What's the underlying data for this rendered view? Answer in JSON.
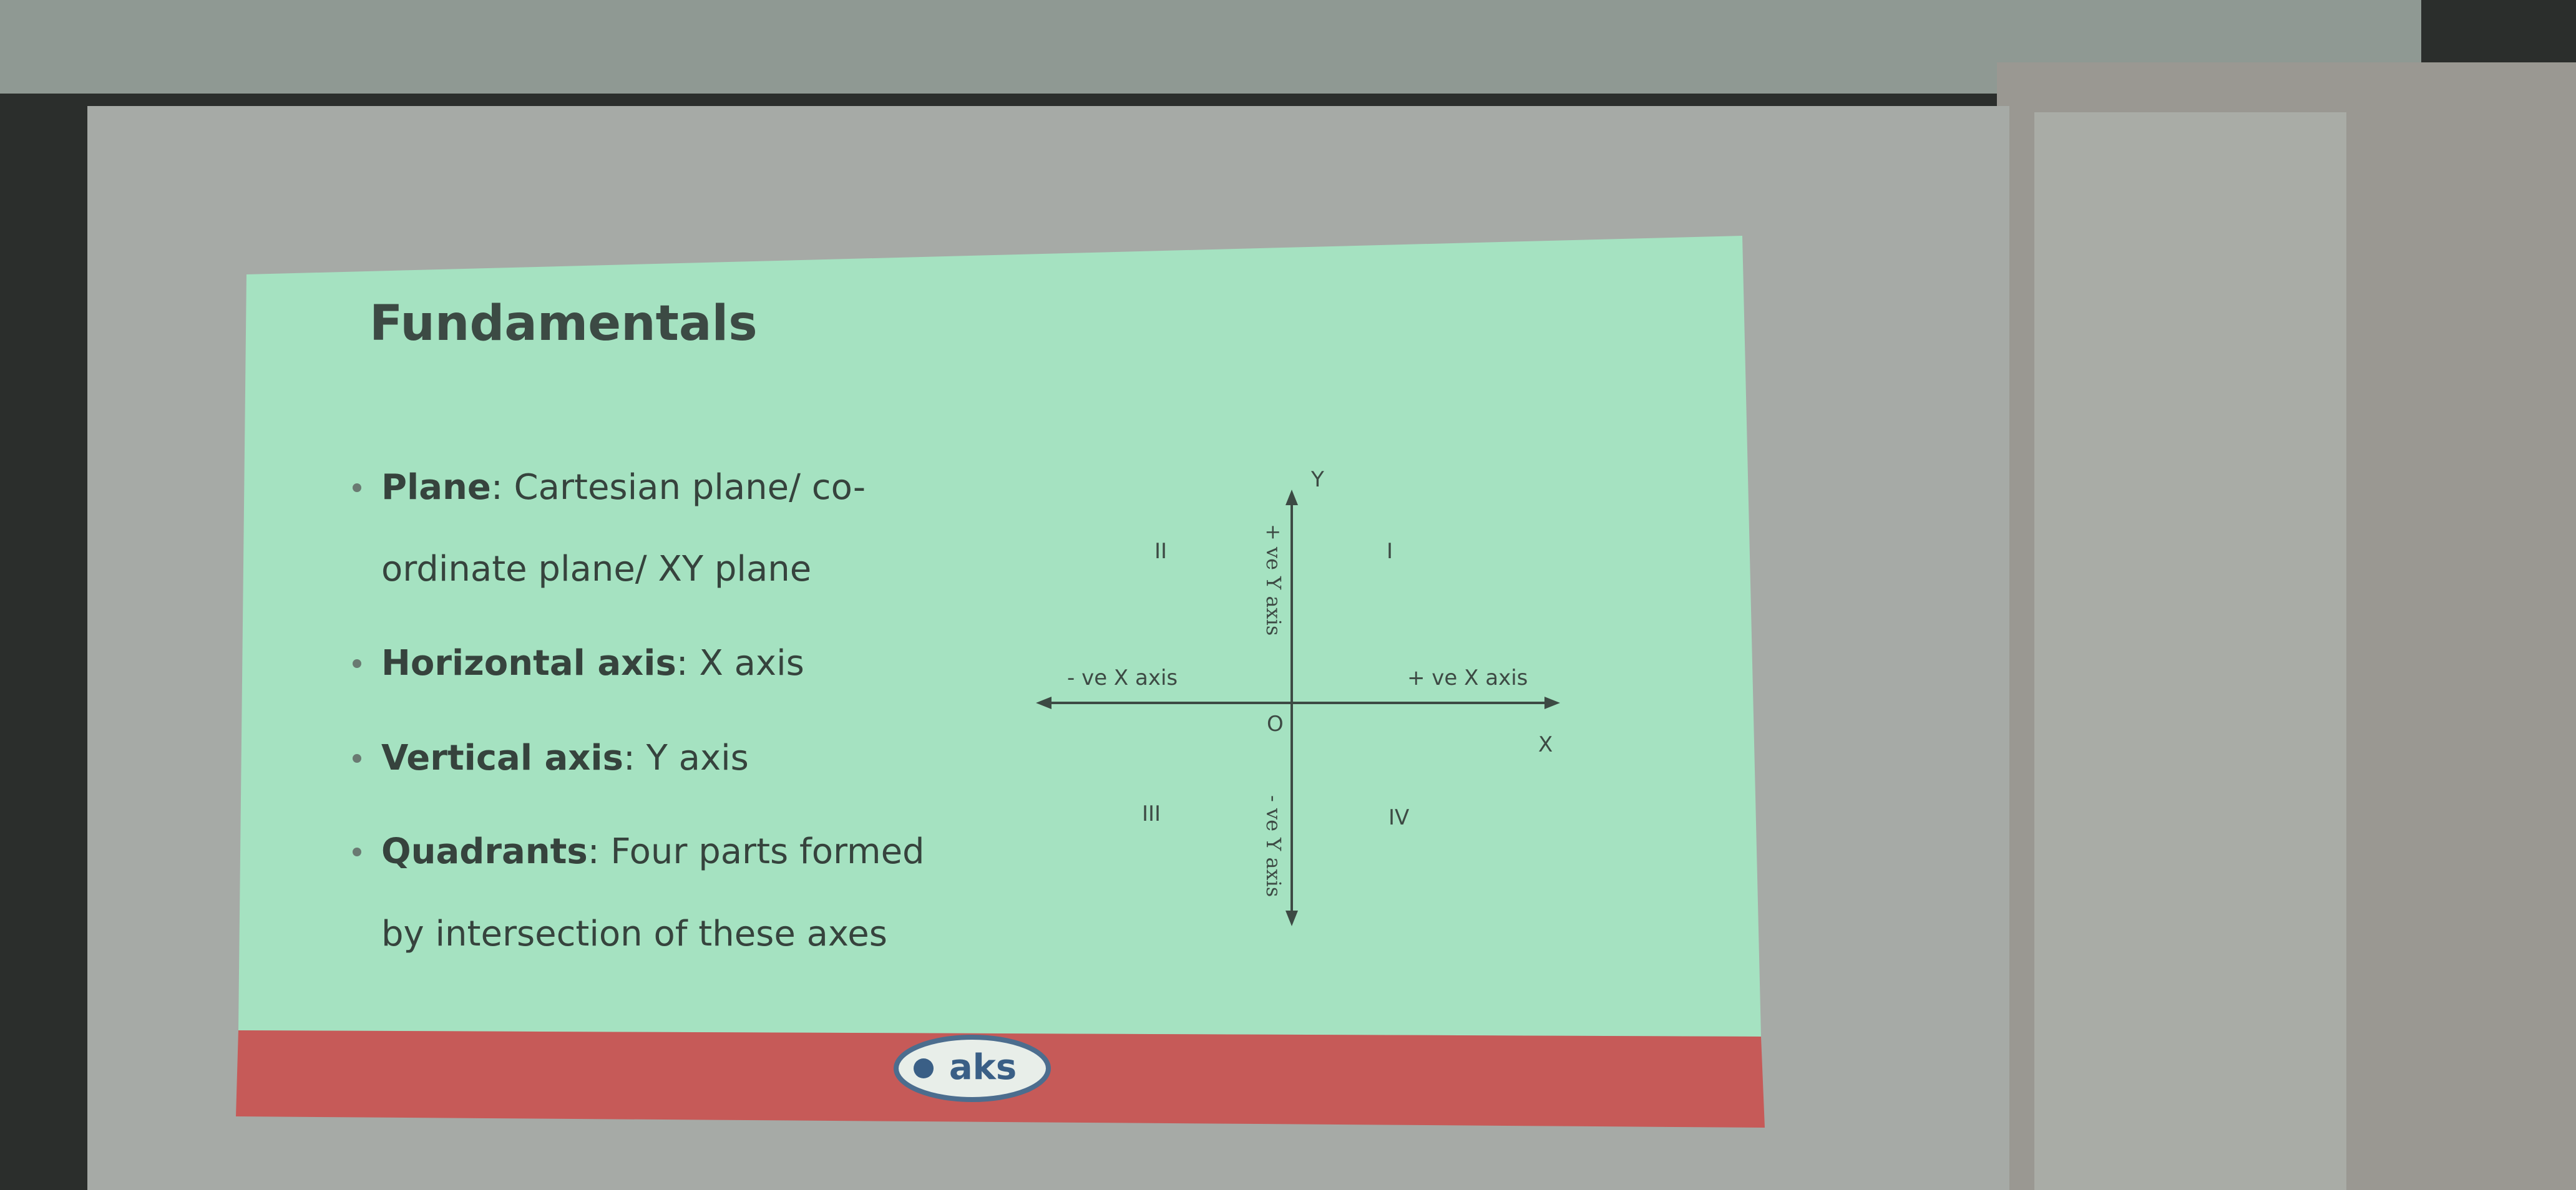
{
  "slide": {
    "title": "Fundamentals",
    "bullets": [
      {
        "term": "Plane",
        "lines": [
          ": Cartesian plane/ co-",
          "ordinate plane/ XY plane"
        ]
      },
      {
        "term": "Horizontal axis",
        "lines": [
          ": X axis"
        ]
      },
      {
        "term": "Vertical axis",
        "lines": [
          ": Y axis"
        ]
      },
      {
        "term": "Quadrants",
        "lines": [
          ": Four parts formed",
          "by intersection of these axes"
        ]
      }
    ],
    "diagram": {
      "y_label": "Y",
      "x_label": "X",
      "origin": "O",
      "neg_x": "- ve X axis",
      "pos_x": "+ ve X axis",
      "pos_y": "+ ve Y axis",
      "neg_y": "- ve Y axis",
      "quadrants": [
        "I",
        "II",
        "III",
        "IV"
      ]
    },
    "logo": "aks"
  }
}
